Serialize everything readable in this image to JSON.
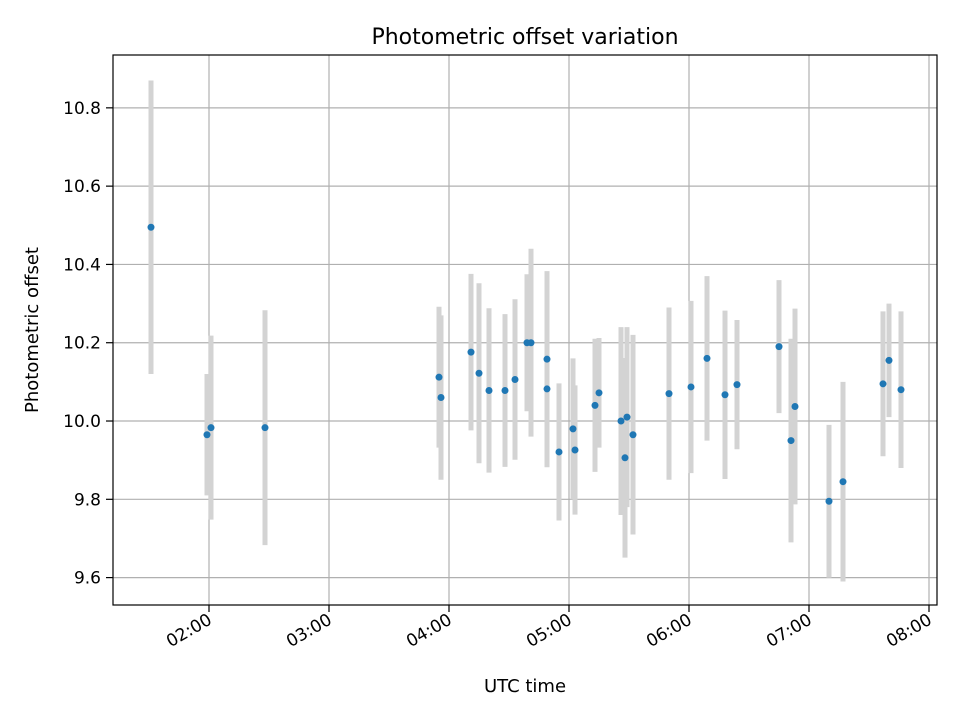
{
  "chart_data": {
    "type": "scatter",
    "title": "Photometric offset variation",
    "xlabel": "UTC time",
    "ylabel": "Photometric offset",
    "x_is_time": true,
    "xlim": [
      "01:12",
      "08:04"
    ],
    "ylim": [
      9.53,
      10.935
    ],
    "x_ticks": [
      "02:00",
      "03:00",
      "04:00",
      "05:00",
      "06:00",
      "07:00",
      "08:00"
    ],
    "y_ticks": [
      9.6,
      9.8,
      10.0,
      10.2,
      10.4,
      10.6,
      10.8
    ],
    "y_tick_labels": [
      "9.6",
      "9.8",
      "10.0",
      "10.2",
      "10.4",
      "10.6",
      "10.8"
    ],
    "grid": true,
    "legend": false,
    "colors": {
      "point": "#1f77b4",
      "errorbar": "#d3d3d3",
      "grid": "#b0b0b0",
      "axes": "#000000"
    },
    "points": [
      {
        "x": "01:31",
        "y": 10.495,
        "err": 0.375
      },
      {
        "x": "01:59",
        "y": 9.965,
        "err": 0.155
      },
      {
        "x": "02:01",
        "y": 9.983,
        "err": 0.235
      },
      {
        "x": "02:28",
        "y": 9.983,
        "err": 0.3
      },
      {
        "x": "03:55",
        "y": 10.112,
        "err": 0.18
      },
      {
        "x": "03:56",
        "y": 10.06,
        "err": 0.21
      },
      {
        "x": "04:11",
        "y": 10.176,
        "err": 0.2
      },
      {
        "x": "04:15",
        "y": 10.122,
        "err": 0.23
      },
      {
        "x": "04:20",
        "y": 10.078,
        "err": 0.21
      },
      {
        "x": "04:28",
        "y": 10.078,
        "err": 0.195
      },
      {
        "x": "04:33",
        "y": 10.106,
        "err": 0.205
      },
      {
        "x": "04:39",
        "y": 10.2,
        "err": 0.175
      },
      {
        "x": "04:41",
        "y": 10.2,
        "err": 0.24
      },
      {
        "x": "04:49",
        "y": 10.158,
        "err": 0.225
      },
      {
        "x": "04:49",
        "y": 10.082,
        "err": 0.2
      },
      {
        "x": "04:55",
        "y": 9.921,
        "err": 0.175
      },
      {
        "x": "05:02",
        "y": 9.98,
        "err": 0.18
      },
      {
        "x": "05:03",
        "y": 9.926,
        "err": 0.165
      },
      {
        "x": "05:13",
        "y": 10.04,
        "err": 0.17
      },
      {
        "x": "05:15",
        "y": 10.072,
        "err": 0.14
      },
      {
        "x": "05:26",
        "y": 10.0,
        "err": 0.24
      },
      {
        "x": "05:28",
        "y": 9.906,
        "err": 0.255
      },
      {
        "x": "05:29",
        "y": 10.01,
        "err": 0.23
      },
      {
        "x": "05:32",
        "y": 9.965,
        "err": 0.255
      },
      {
        "x": "05:50",
        "y": 10.07,
        "err": 0.22
      },
      {
        "x": "06:01",
        "y": 10.087,
        "err": 0.22
      },
      {
        "x": "06:09",
        "y": 10.16,
        "err": 0.21
      },
      {
        "x": "06:18",
        "y": 10.067,
        "err": 0.215
      },
      {
        "x": "06:24",
        "y": 10.093,
        "err": 0.165
      },
      {
        "x": "06:45",
        "y": 10.19,
        "err": 0.17
      },
      {
        "x": "06:51",
        "y": 9.95,
        "err": 0.26
      },
      {
        "x": "06:53",
        "y": 10.037,
        "err": 0.25
      },
      {
        "x": "07:10",
        "y": 9.795,
        "err": 0.195
      },
      {
        "x": "07:17",
        "y": 9.845,
        "err": 0.255
      },
      {
        "x": "07:37",
        "y": 10.095,
        "err": 0.185
      },
      {
        "x": "07:40",
        "y": 10.155,
        "err": 0.145
      },
      {
        "x": "07:46",
        "y": 10.08,
        "err": 0.2
      }
    ]
  }
}
